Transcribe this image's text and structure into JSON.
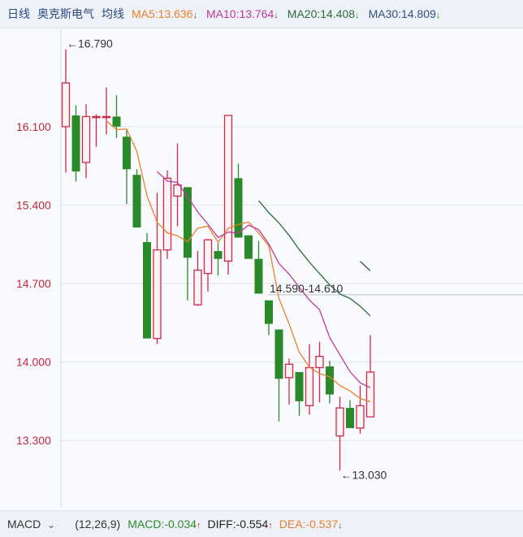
{
  "header": {
    "period": "日线",
    "stock_name": "奥克斯电气",
    "ma_label": "均线",
    "ma": [
      {
        "label": "MA5:13.636",
        "color": "#e8822a",
        "trend": "down"
      },
      {
        "label": "MA10:13.764",
        "color": "#c0399a",
        "trend": "down"
      },
      {
        "label": "MA20:14.408",
        "color": "#2f6b3a",
        "trend": "down"
      },
      {
        "label": "MA30:14.809",
        "color": "#33507a",
        "trend": "down"
      }
    ],
    "arrow_down": "🡇",
    "arrow_up": "🡅"
  },
  "footer": {
    "indicator": "MACD",
    "dropdown_icon": "chevron-down-icon",
    "chevron": "⌄",
    "params": "(12,26,9)",
    "macd": {
      "label": "MACD:-0.034",
      "color": "#2a8a2a",
      "trend": "up"
    },
    "diff": {
      "label": "DIFF:-0.554",
      "color": "#222222",
      "trend": "up"
    },
    "dea": {
      "label": "DEA:-0.537",
      "color": "#e8822a",
      "trend": "down"
    }
  },
  "colors": {
    "up": "#d0284a",
    "down": "#2a8a2a",
    "up_fill": "#fdf2f4",
    "arrow_up": "#e02020",
    "arrow_down": "#1f8a1f"
  },
  "chart_data": {
    "type": "candlestick",
    "ylim": [
      12.75,
      16.94
    ],
    "y_ticks": [
      "16.100",
      "15.400",
      "14.700",
      "14.000",
      "13.300"
    ],
    "grid": true,
    "candles": [
      {
        "o": 16.1,
        "h": 16.79,
        "l": 15.69,
        "c": 16.49
      },
      {
        "o": 16.2,
        "h": 16.29,
        "l": 15.61,
        "c": 15.7
      },
      {
        "o": 15.78,
        "h": 16.3,
        "l": 15.64,
        "c": 16.19
      },
      {
        "o": 16.19,
        "h": 16.21,
        "l": 15.92,
        "c": 16.19
      },
      {
        "o": 16.19,
        "h": 16.45,
        "l": 16.03,
        "c": 16.19
      },
      {
        "o": 16.19,
        "h": 16.38,
        "l": 16.0,
        "c": 16.1
      },
      {
        "o": 16.01,
        "h": 16.07,
        "l": 15.41,
        "c": 15.72
      },
      {
        "o": 15.67,
        "h": 15.72,
        "l": 15.2,
        "c": 15.2
      },
      {
        "o": 15.07,
        "h": 15.15,
        "l": 14.21,
        "c": 14.21
      },
      {
        "o": 14.21,
        "h": 15.51,
        "l": 14.16,
        "c": 15.0
      },
      {
        "o": 15.0,
        "h": 15.71,
        "l": 14.92,
        "c": 15.64
      },
      {
        "o": 15.48,
        "h": 15.95,
        "l": 15.21,
        "c": 15.58
      },
      {
        "o": 15.56,
        "h": 15.56,
        "l": 14.55,
        "c": 14.93
      },
      {
        "o": 14.51,
        "h": 14.99,
        "l": 14.5,
        "c": 14.82
      },
      {
        "o": 14.79,
        "h": 15.1,
        "l": 14.63,
        "c": 15.09
      },
      {
        "o": 14.99,
        "h": 15.06,
        "l": 14.77,
        "c": 14.92
      },
      {
        "o": 14.9,
        "h": 16.2,
        "l": 14.78,
        "c": 16.2
      },
      {
        "o": 15.64,
        "h": 15.77,
        "l": 15.11,
        "c": 15.11
      },
      {
        "o": 15.13,
        "h": 15.13,
        "l": 14.92,
        "c": 14.92
      },
      {
        "o": 14.92,
        "h": 15.08,
        "l": 14.61,
        "c": 14.61
      },
      {
        "o": 14.55,
        "h": 14.55,
        "l": 14.24,
        "c": 14.34
      },
      {
        "o": 14.29,
        "h": 14.29,
        "l": 13.47,
        "c": 13.85
      },
      {
        "o": 13.86,
        "h": 14.03,
        "l": 13.62,
        "c": 13.98
      },
      {
        "o": 13.91,
        "h": 13.91,
        "l": 13.52,
        "c": 13.65
      },
      {
        "o": 13.61,
        "h": 14.16,
        "l": 13.53,
        "c": 13.95
      },
      {
        "o": 13.95,
        "h": 14.18,
        "l": 13.64,
        "c": 14.05
      },
      {
        "o": 13.96,
        "h": 14.01,
        "l": 13.63,
        "c": 13.71
      },
      {
        "o": 13.34,
        "h": 13.69,
        "l": 13.03,
        "c": 13.59
      },
      {
        "o": 13.59,
        "h": 13.66,
        "l": 13.41,
        "c": 13.41
      },
      {
        "o": 13.41,
        "h": 13.79,
        "l": 13.36,
        "c": 13.61
      },
      {
        "o": 13.51,
        "h": 14.24,
        "l": 13.51,
        "c": 13.91
      }
    ],
    "moving_averages": [
      {
        "name": "MA5",
        "period": 5,
        "color": "#e8822a"
      },
      {
        "name": "MA10",
        "period": 10,
        "color": "#c0399a"
      },
      {
        "name": "MA20",
        "period": 20,
        "color": "#2f6b3a"
      },
      {
        "name": "MA30",
        "period": 30,
        "color": "#33507a"
      }
    ],
    "annotations": {
      "high_label": "←16.790",
      "high_value": 16.79,
      "low_label": "←13.030",
      "low_value": 13.03,
      "range_label": "14.590-14.610",
      "range_value": 14.6
    }
  }
}
